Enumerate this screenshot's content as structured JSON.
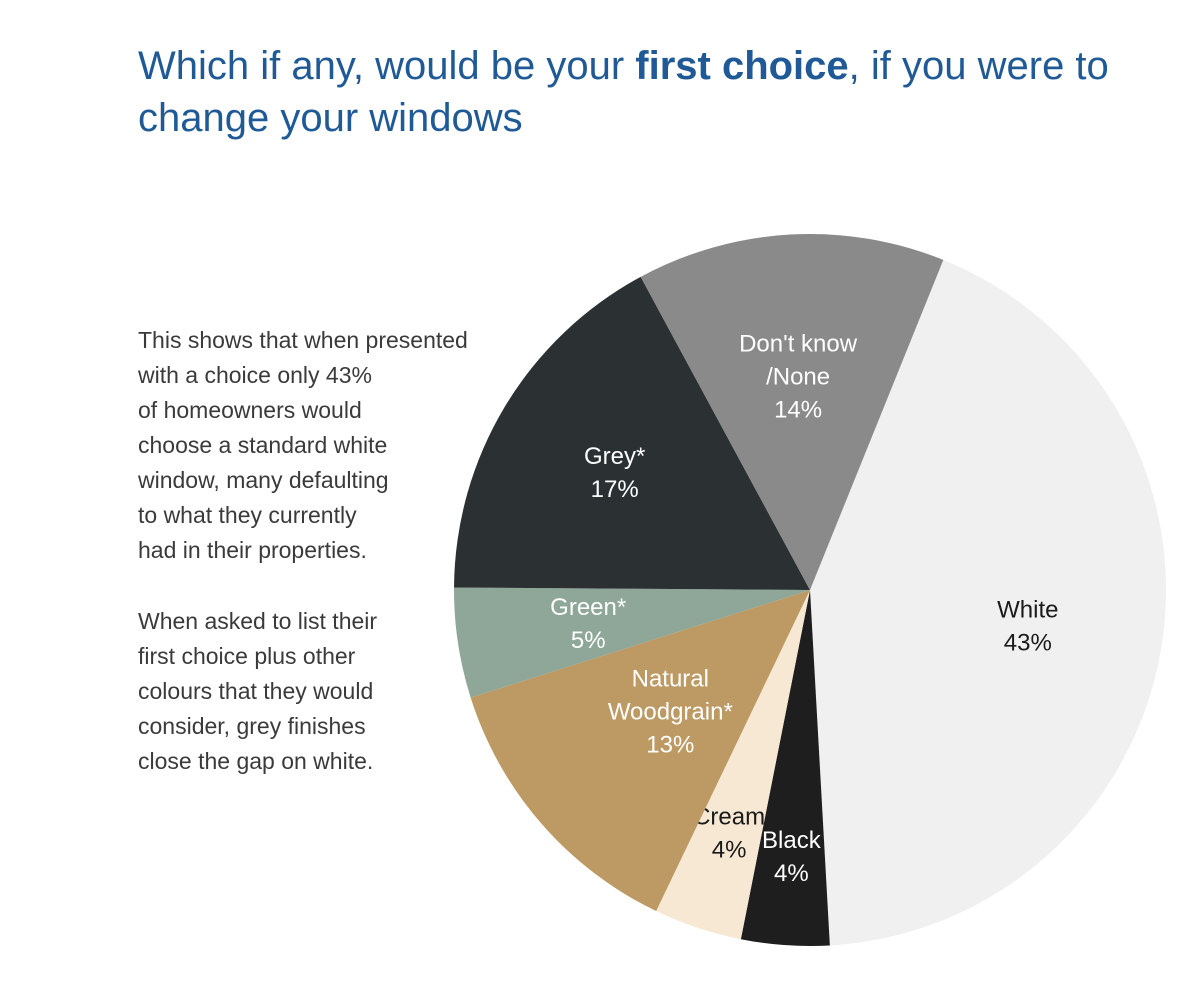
{
  "title": {
    "part1": "Which if any, would be your ",
    "bold": "first choice",
    "part2": ", if you were to change your windows"
  },
  "paragraph1": [
    "This shows that when presented",
    "with a choice only 43%",
    "of homeowners would",
    "choose a standard white",
    "window, many defaulting",
    "to what they currently",
    "had in their properties."
  ],
  "paragraph2": [
    "When asked to list their",
    "first choice plus other",
    "colours that they would",
    "consider, grey finishes",
    "close the gap on white."
  ],
  "chart_data": {
    "type": "pie",
    "title": "Which if any, would be your first choice, if you were to change your windows",
    "slices": [
      {
        "name": "White",
        "value": 43,
        "label_lines": [
          "White",
          "43%"
        ],
        "color": "#f0f0f0",
        "text_color": "#1a1a1a"
      },
      {
        "name": "Black",
        "value": 4,
        "label_lines": [
          "Black",
          "4%"
        ],
        "color": "#1e1e1e",
        "text_color": "#ffffff"
      },
      {
        "name": "Cream",
        "value": 4,
        "label_lines": [
          "Cream",
          "4%"
        ],
        "color": "#f6e8d2",
        "text_color": "#1a1a1a"
      },
      {
        "name": "Natural Woodgrain*",
        "value": 13,
        "label_lines": [
          "Natural",
          "Woodgrain*",
          "13%"
        ],
        "color": "#bd9a63",
        "text_color": "#ffffff"
      },
      {
        "name": "Green*",
        "value": 5,
        "label_lines": [
          "Green*",
          "5%"
        ],
        "color": "#8ea799",
        "text_color": "#ffffff"
      },
      {
        "name": "Grey*",
        "value": 17,
        "label_lines": [
          "Grey*",
          "17%"
        ],
        "color": "#2b3133",
        "text_color": "#ffffff"
      },
      {
        "name": "Don't know /None",
        "value": 14,
        "label_lines": [
          "Don't know",
          "/None",
          "14%"
        ],
        "color": "#8a8a8a",
        "text_color": "#ffffff"
      }
    ]
  }
}
